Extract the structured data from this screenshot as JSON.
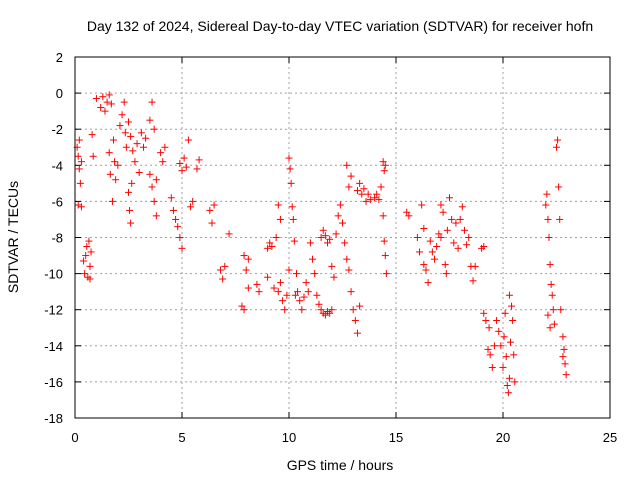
{
  "chart_data": {
    "type": "scatter",
    "title": "Day 132 of 2024, Sidereal Day-to-day VTEC variation (SDTVAR) for receiver hofn",
    "xlabel": "GPS time / hours",
    "ylabel": "SDTVAR / TECUs",
    "xlim": [
      0,
      25
    ],
    "ylim": [
      -18,
      2
    ],
    "xticks": [
      0,
      5,
      10,
      15,
      20,
      25
    ],
    "yticks": [
      2,
      0,
      -2,
      -4,
      -6,
      -8,
      -10,
      -12,
      -14,
      -16,
      -18
    ],
    "grid": true,
    "marker": "+",
    "color": "#ff0000",
    "series": [
      {
        "name": "SDTVAR",
        "points": [
          [
            0.1,
            -3.0
          ],
          [
            0.15,
            -3.5
          ],
          [
            0.2,
            -4.2
          ],
          [
            0.2,
            -2.6
          ],
          [
            0.25,
            -5.0
          ],
          [
            0.3,
            -3.8
          ],
          [
            0.15,
            -6.2
          ],
          [
            0.3,
            -6.3
          ],
          [
            0.4,
            -9.3
          ],
          [
            0.45,
            -10.0
          ],
          [
            0.5,
            -9.0
          ],
          [
            0.55,
            -8.5
          ],
          [
            0.6,
            -10.2
          ],
          [
            0.65,
            -8.2
          ],
          [
            0.7,
            -9.6
          ],
          [
            0.75,
            -8.8
          ],
          [
            0.7,
            -10.3
          ],
          [
            0.8,
            -2.3
          ],
          [
            0.85,
            -3.5
          ],
          [
            1.0,
            -0.3
          ],
          [
            1.2,
            -0.8
          ],
          [
            1.3,
            -0.2
          ],
          [
            1.4,
            -1.0
          ],
          [
            1.5,
            -0.5
          ],
          [
            1.6,
            -0.1
          ],
          [
            1.7,
            -0.6
          ],
          [
            1.6,
            -3.3
          ],
          [
            1.65,
            -4.5
          ],
          [
            1.75,
            -6.0
          ],
          [
            1.8,
            -2.6
          ],
          [
            1.85,
            -3.8
          ],
          [
            1.9,
            -4.8
          ],
          [
            2.0,
            -4.0
          ],
          [
            2.1,
            -1.8
          ],
          [
            2.2,
            -1.2
          ],
          [
            2.3,
            -0.5
          ],
          [
            2.35,
            -2.2
          ],
          [
            2.4,
            -3.0
          ],
          [
            2.5,
            -1.6
          ],
          [
            2.6,
            -2.4
          ],
          [
            2.7,
            -3.2
          ],
          [
            2.8,
            -3.8
          ],
          [
            2.9,
            -2.8
          ],
          [
            3.0,
            -4.4
          ],
          [
            2.5,
            -5.5
          ],
          [
            2.55,
            -6.5
          ],
          [
            2.6,
            -7.2
          ],
          [
            2.65,
            -5.0
          ],
          [
            3.1,
            -2.2
          ],
          [
            3.2,
            -3.0
          ],
          [
            3.3,
            -2.5
          ],
          [
            3.5,
            -1.5
          ],
          [
            3.6,
            -0.5
          ],
          [
            3.7,
            -2.0
          ],
          [
            3.5,
            -4.5
          ],
          [
            3.6,
            -5.2
          ],
          [
            3.7,
            -6.0
          ],
          [
            3.8,
            -4.8
          ],
          [
            3.8,
            -6.8
          ],
          [
            4.0,
            -3.3
          ],
          [
            4.1,
            -3.8
          ],
          [
            4.2,
            -3.0
          ],
          [
            4.5,
            -5.8
          ],
          [
            4.6,
            -6.5
          ],
          [
            4.7,
            -7.0
          ],
          [
            4.8,
            -7.4
          ],
          [
            4.9,
            -8.0
          ],
          [
            5.0,
            -8.6
          ],
          [
            4.9,
            -3.9
          ],
          [
            5.0,
            -4.3
          ],
          [
            5.1,
            -3.6
          ],
          [
            5.2,
            -4.1
          ],
          [
            5.3,
            -2.6
          ],
          [
            5.4,
            -6.3
          ],
          [
            5.5,
            -6.0
          ],
          [
            5.7,
            -4.2
          ],
          [
            5.8,
            -3.7
          ],
          [
            6.3,
            -6.5
          ],
          [
            6.4,
            -7.2
          ],
          [
            6.5,
            -6.2
          ],
          [
            6.8,
            -9.8
          ],
          [
            6.9,
            -10.3
          ],
          [
            7.0,
            -9.6
          ],
          [
            7.2,
            -7.8
          ],
          [
            7.8,
            -11.8
          ],
          [
            7.9,
            -12.0
          ],
          [
            7.9,
            -9.0
          ],
          [
            8.0,
            -9.8
          ],
          [
            8.1,
            -10.8
          ],
          [
            8.1,
            -9.2
          ],
          [
            8.5,
            -10.6
          ],
          [
            8.6,
            -11.0
          ],
          [
            9.0,
            -8.6
          ],
          [
            9.1,
            -8.3
          ],
          [
            9.2,
            -8.5
          ],
          [
            9.0,
            -10.2
          ],
          [
            9.3,
            -10.8
          ],
          [
            9.4,
            -8.0
          ],
          [
            9.5,
            -11.0
          ],
          [
            9.6,
            -10.5
          ],
          [
            9.5,
            -6.2
          ],
          [
            9.6,
            -7.0
          ],
          [
            9.7,
            -11.5
          ],
          [
            9.8,
            -12.0
          ],
          [
            9.9,
            -11.2
          ],
          [
            10.0,
            -9.8
          ],
          [
            10.0,
            -3.6
          ],
          [
            10.05,
            -4.2
          ],
          [
            10.1,
            -5.0
          ],
          [
            10.15,
            -6.3
          ],
          [
            10.2,
            -7.0
          ],
          [
            10.25,
            -8.2
          ],
          [
            10.3,
            -11.2
          ],
          [
            10.35,
            -10.0
          ],
          [
            10.4,
            -11.0
          ],
          [
            10.5,
            -11.5
          ],
          [
            10.6,
            -12.0
          ],
          [
            10.7,
            -11.3
          ],
          [
            10.8,
            -10.5
          ],
          [
            10.9,
            -11.0
          ],
          [
            11.0,
            -8.3
          ],
          [
            11.1,
            -9.2
          ],
          [
            11.2,
            -10.0
          ],
          [
            11.3,
            -11.2
          ],
          [
            11.4,
            -11.7
          ],
          [
            11.5,
            -12.0
          ],
          [
            11.6,
            -12.2
          ],
          [
            11.7,
            -12.3
          ],
          [
            11.8,
            -12.1
          ],
          [
            11.9,
            -12.2
          ],
          [
            12.0,
            -12.0
          ],
          [
            11.5,
            -8.0
          ],
          [
            11.6,
            -7.6
          ],
          [
            11.7,
            -7.9
          ],
          [
            11.8,
            -8.3
          ],
          [
            11.9,
            -8.1
          ],
          [
            12.0,
            -9.6
          ],
          [
            12.1,
            -10.2
          ],
          [
            12.2,
            -7.8
          ],
          [
            12.3,
            -6.8
          ],
          [
            12.4,
            -6.2
          ],
          [
            12.5,
            -7.2
          ],
          [
            12.6,
            -8.3
          ],
          [
            12.7,
            -9.2
          ],
          [
            12.8,
            -9.8
          ],
          [
            12.9,
            -11.0
          ],
          [
            12.7,
            -4.0
          ],
          [
            12.8,
            -5.2
          ],
          [
            12.9,
            -4.6
          ],
          [
            13.0,
            -12.0
          ],
          [
            13.1,
            -12.6
          ],
          [
            13.2,
            -13.3
          ],
          [
            13.3,
            -11.8
          ],
          [
            13.2,
            -5.4
          ],
          [
            13.3,
            -5.0
          ],
          [
            13.4,
            -5.6
          ],
          [
            13.5,
            -5.3
          ],
          [
            13.6,
            -6.0
          ],
          [
            13.7,
            -5.6
          ],
          [
            13.8,
            -5.9
          ],
          [
            14.0,
            -5.8
          ],
          [
            14.1,
            -5.6
          ],
          [
            14.2,
            -5.9
          ],
          [
            14.3,
            -5.2
          ],
          [
            14.4,
            -3.8
          ],
          [
            14.45,
            -4.3
          ],
          [
            14.5,
            -4.0
          ],
          [
            14.4,
            -6.8
          ],
          [
            14.45,
            -8.2
          ],
          [
            14.5,
            -9.0
          ],
          [
            14.55,
            -10.0
          ],
          [
            15.5,
            -6.6
          ],
          [
            15.6,
            -6.8
          ],
          [
            16.0,
            -8.0
          ],
          [
            16.1,
            -8.8
          ],
          [
            16.2,
            -6.2
          ],
          [
            16.3,
            -7.5
          ],
          [
            16.3,
            -9.5
          ],
          [
            16.4,
            -9.8
          ],
          [
            16.5,
            -10.5
          ],
          [
            16.6,
            -8.2
          ],
          [
            16.7,
            -8.8
          ],
          [
            16.8,
            -9.2
          ],
          [
            16.9,
            -8.5
          ],
          [
            17.0,
            -7.8
          ],
          [
            17.1,
            -8.0
          ],
          [
            17.1,
            -6.2
          ],
          [
            17.2,
            -6.6
          ],
          [
            17.3,
            -9.5
          ],
          [
            17.35,
            -10.0
          ],
          [
            17.4,
            -7.6
          ],
          [
            17.5,
            -5.8
          ],
          [
            17.6,
            -7.0
          ],
          [
            17.7,
            -8.3
          ],
          [
            17.8,
            -7.2
          ],
          [
            17.9,
            -8.6
          ],
          [
            18.0,
            -7.0
          ],
          [
            18.1,
            -6.3
          ],
          [
            18.2,
            -7.6
          ],
          [
            18.3,
            -8.4
          ],
          [
            18.4,
            -8.0
          ],
          [
            18.5,
            -9.6
          ],
          [
            18.6,
            -10.4
          ],
          [
            18.7,
            -9.6
          ],
          [
            19.0,
            -8.6
          ],
          [
            19.1,
            -8.5
          ],
          [
            19.1,
            -12.2
          ],
          [
            19.2,
            -12.6
          ],
          [
            19.3,
            -14.2
          ],
          [
            19.35,
            -13.0
          ],
          [
            19.4,
            -14.5
          ],
          [
            19.5,
            -15.2
          ],
          [
            19.6,
            -14.0
          ],
          [
            19.7,
            -12.6
          ],
          [
            19.8,
            -13.2
          ],
          [
            19.9,
            -14.0
          ],
          [
            20.0,
            -15.2
          ],
          [
            20.05,
            -13.5
          ],
          [
            20.1,
            -12.2
          ],
          [
            20.15,
            -14.6
          ],
          [
            20.2,
            -16.2
          ],
          [
            20.25,
            -16.6
          ],
          [
            20.3,
            -15.8
          ],
          [
            20.35,
            -13.8
          ],
          [
            20.4,
            -11.8
          ],
          [
            20.45,
            -12.6
          ],
          [
            20.5,
            -14.5
          ],
          [
            20.55,
            -16.0
          ],
          [
            20.3,
            -11.2
          ],
          [
            22.0,
            -6.2
          ],
          [
            22.05,
            -5.6
          ],
          [
            22.1,
            -7.0
          ],
          [
            22.15,
            -8.0
          ],
          [
            22.2,
            -9.5
          ],
          [
            22.25,
            -10.6
          ],
          [
            22.3,
            -11.2
          ],
          [
            22.35,
            -12.0
          ],
          [
            22.4,
            -12.8
          ],
          [
            22.1,
            -12.3
          ],
          [
            22.2,
            -13.0
          ],
          [
            22.5,
            -3.0
          ],
          [
            22.55,
            -2.6
          ],
          [
            22.6,
            -5.2
          ],
          [
            22.65,
            -7.0
          ],
          [
            22.7,
            -12.0
          ],
          [
            22.8,
            -13.5
          ],
          [
            22.85,
            -14.2
          ],
          [
            22.9,
            -15.0
          ],
          [
            22.95,
            -15.6
          ],
          [
            22.8,
            -14.6
          ]
        ]
      }
    ]
  }
}
